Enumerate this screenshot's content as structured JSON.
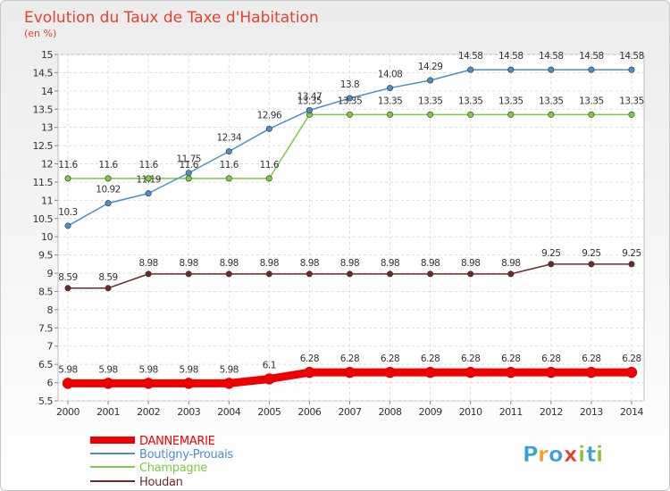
{
  "chart_data": {
    "type": "line",
    "title": "Evolution du Taux de Taxe d'Habitation",
    "subtitle": "(en %)",
    "x": [
      "2000",
      "2001",
      "2002",
      "2003",
      "2004",
      "2005",
      "2006",
      "2007",
      "2008",
      "2009",
      "2010",
      "2011",
      "2012",
      "2013",
      "2014"
    ],
    "ylim": [
      5.5,
      15
    ],
    "yticks": [
      "5.5",
      "6",
      "6.5",
      "7",
      "7.5",
      "8",
      "8.5",
      "9",
      "9.5",
      "10",
      "10.5",
      "11",
      "11.5",
      "12",
      "12.5",
      "13",
      "13.5",
      "14",
      "14.5",
      "15"
    ],
    "grid": true,
    "legend_position": "bottom-left",
    "series": [
      {
        "name": "DANNEMARIE",
        "color": "#ee0000",
        "values": [
          5.98,
          5.98,
          5.98,
          5.98,
          5.98,
          6.1,
          6.28,
          6.28,
          6.28,
          6.28,
          6.28,
          6.28,
          6.28,
          6.28,
          6.28
        ],
        "labels": [
          "5.98",
          "5.98",
          "5.98",
          "5.98",
          "5.98",
          "6.1",
          "6.28",
          "6.28",
          "6.28",
          "6.28",
          "6.28",
          "6.28",
          "6.28",
          "6.28",
          "6.28"
        ]
      },
      {
        "name": "Boutigny-Prouais",
        "color": "#4a90c8",
        "values": [
          10.3,
          10.92,
          11.19,
          11.75,
          12.34,
          12.96,
          13.47,
          13.8,
          14.08,
          14.29,
          14.58,
          14.58,
          14.58,
          14.58,
          14.58
        ],
        "labels": [
          "10.3",
          "10.92",
          "11.19",
          "11.75",
          "12.34",
          "12.96",
          "13.47",
          "13.8",
          "14.08",
          "14.29",
          "14.58",
          "14.58",
          "14.58",
          "14.58",
          "14.58"
        ]
      },
      {
        "name": "Champagne",
        "color": "#7ccc3c",
        "values": [
          11.6,
          11.6,
          11.6,
          11.6,
          11.6,
          11.6,
          13.35,
          13.35,
          13.35,
          13.35,
          13.35,
          13.35,
          13.35,
          13.35,
          13.35
        ],
        "labels": [
          "11.6",
          "11.6",
          "11.6",
          "11.6",
          "11.6",
          "11.6",
          "13.35",
          "13.35",
          "13.35",
          "13.35",
          "13.35",
          "13.35",
          "13.35",
          "13.35",
          "13.35"
        ]
      },
      {
        "name": "Houdan",
        "color": "#6e2a2a",
        "values": [
          8.59,
          8.59,
          8.98,
          8.98,
          8.98,
          8.98,
          8.98,
          8.98,
          8.98,
          8.98,
          8.98,
          8.98,
          9.25,
          9.25,
          9.25
        ],
        "labels": [
          "8.59",
          "8.59",
          "8.98",
          "8.98",
          "8.98",
          "8.98",
          "8.98",
          "8.98",
          "8.98",
          "8.98",
          "8.98",
          "8.98",
          "9.25",
          "9.25",
          "9.25"
        ]
      }
    ]
  },
  "logo": {
    "text": "Proxiti",
    "letters": [
      "P",
      "r",
      "o",
      "x",
      "i",
      "t",
      "i"
    ],
    "colors": [
      "#3aa0d8",
      "#f0a020",
      "#3aa0d8",
      "#e83828",
      "#90c030",
      "#3aa0d8",
      "#90c030"
    ]
  }
}
